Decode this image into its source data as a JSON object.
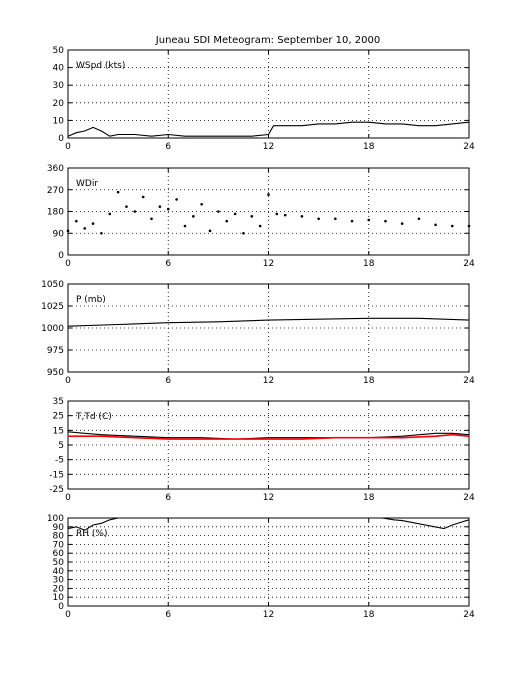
{
  "title": "Juneau SDI Meteogram: September 10, 2000",
  "colors": {
    "line": "#000000",
    "secondary": "#ff0000",
    "grid": "#000000",
    "background": "#ffffff"
  },
  "chart_data": [
    {
      "type": "line",
      "panel_label": "WSpd (kts)",
      "ylim": [
        0,
        50
      ],
      "yticks": [
        0,
        10,
        20,
        30,
        40,
        50
      ],
      "xlim": [
        0,
        24
      ],
      "xticks": [
        0,
        6,
        12,
        18,
        24
      ],
      "grid": true,
      "series": [
        {
          "x": [
            0,
            0.5,
            1,
            1.5,
            2,
            2.5,
            3,
            4,
            5,
            6,
            7,
            8,
            9,
            10,
            11,
            12,
            12.3,
            13,
            14,
            15,
            16,
            17,
            18,
            19,
            20,
            21,
            22,
            23,
            24
          ],
          "y": [
            1,
            3,
            4,
            6,
            4,
            1,
            2,
            2,
            1,
            2,
            1,
            1,
            1,
            1,
            1,
            2,
            7,
            7,
            7,
            8,
            8,
            9,
            9,
            8,
            8,
            7,
            7,
            8,
            9
          ]
        }
      ]
    },
    {
      "type": "scatter",
      "panel_label": "WDir",
      "ylim": [
        0,
        360
      ],
      "yticks": [
        0,
        90,
        180,
        270,
        360
      ],
      "xlim": [
        0,
        24
      ],
      "xticks": [
        0,
        6,
        12,
        18,
        24
      ],
      "grid": true,
      "series": [
        {
          "x": [
            0,
            0.5,
            1,
            1.5,
            2,
            2.5,
            3,
            3.5,
            4,
            4.5,
            5,
            5.5,
            6,
            6.5,
            7,
            7.5,
            8,
            8.5,
            9,
            9.5,
            10,
            10.5,
            11,
            11.5,
            12,
            12.5,
            13,
            14,
            15,
            16,
            17,
            18,
            19,
            20,
            21,
            22,
            23,
            24
          ],
          "y": [
            100,
            140,
            110,
            130,
            90,
            170,
            260,
            200,
            180,
            240,
            150,
            200,
            190,
            230,
            120,
            160,
            210,
            100,
            180,
            140,
            170,
            90,
            160,
            120,
            250,
            170,
            165,
            160,
            150,
            150,
            140,
            145,
            140,
            130,
            150,
            125,
            120,
            120
          ]
        }
      ]
    },
    {
      "type": "line",
      "panel_label": "P (mb)",
      "ylim": [
        950,
        1050
      ],
      "yticks": [
        950,
        975,
        1000,
        1025,
        1050
      ],
      "xlim": [
        0,
        24
      ],
      "xticks": [
        0,
        6,
        12,
        18,
        24
      ],
      "grid": true,
      "series": [
        {
          "x": [
            0,
            3,
            6,
            9,
            12,
            15,
            18,
            21,
            24
          ],
          "y": [
            1002,
            1004,
            1006,
            1007,
            1009,
            1010,
            1011,
            1011,
            1009
          ]
        }
      ]
    },
    {
      "type": "line",
      "panel_label": "T,Td (C)",
      "ylim": [
        -25,
        35
      ],
      "yticks": [
        -25,
        -15,
        -5,
        5,
        15,
        25,
        35
      ],
      "xlim": [
        0,
        24
      ],
      "xticks": [
        0,
        6,
        12,
        18,
        24
      ],
      "grid": true,
      "series": [
        {
          "x": [
            0,
            1,
            2,
            4,
            6,
            8,
            10,
            12,
            14,
            16,
            18,
            20,
            22,
            23,
            24
          ],
          "y": [
            14,
            13,
            12,
            11,
            10,
            10,
            9,
            10,
            10,
            10,
            10,
            11,
            13,
            13,
            12
          ]
        },
        {
          "x": [
            0,
            1,
            2,
            4,
            6,
            8,
            10,
            12,
            14,
            16,
            18,
            20,
            22,
            23,
            24
          ],
          "y": [
            11,
            11,
            11,
            10,
            9,
            9,
            9,
            9,
            9,
            10,
            10,
            10,
            11,
            12,
            11
          ]
        }
      ]
    },
    {
      "type": "line",
      "panel_label": "RH (%)",
      "ylim": [
        0,
        100
      ],
      "yticks": [
        0,
        10,
        20,
        30,
        40,
        50,
        60,
        70,
        80,
        90,
        100
      ],
      "xlim": [
        0,
        24
      ],
      "xticks": [
        0,
        6,
        12,
        18,
        24
      ],
      "grid": true,
      "series": [
        {
          "x": [
            0,
            0.5,
            1,
            1.5,
            2,
            2.5,
            3,
            12,
            18.8,
            19.5,
            20,
            22.5,
            23,
            23.5,
            24
          ],
          "y": [
            88,
            90,
            86,
            92,
            94,
            98,
            100,
            100,
            100,
            98,
            97,
            88,
            92,
            95,
            98
          ]
        }
      ]
    }
  ]
}
